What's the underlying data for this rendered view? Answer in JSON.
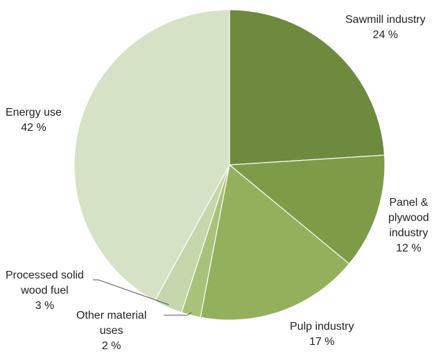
{
  "chart_data": {
    "type": "pie",
    "start_angle": "12 o'clock",
    "direction": "clockwise",
    "slices": [
      {
        "name": "Sawmill industry",
        "label_lines": [
          "Sawmill industry"
        ],
        "value_label": "24 %",
        "value": 24,
        "color": "#6e8a3e"
      },
      {
        "name": "Panel & plywood industry",
        "label_lines": [
          "Panel &",
          "plywood",
          "industry"
        ],
        "value_label": "12 %",
        "value": 12,
        "color": "#7e9c48"
      },
      {
        "name": "Pulp industry",
        "label_lines": [
          "Pulp industry"
        ],
        "value_label": "17 %",
        "value": 17,
        "color": "#93b05c"
      },
      {
        "name": "Other material uses",
        "label_lines": [
          "Other material",
          "uses"
        ],
        "value_label": "2 %",
        "value": 2,
        "color": "#a9c27a"
      },
      {
        "name": "Processed solid wood fuel",
        "label_lines": [
          "Processed solid",
          "wood fuel"
        ],
        "value_label": "3 %",
        "value": 3,
        "color": "#c6d6ad"
      },
      {
        "name": "Energy use",
        "label_lines": [
          "Energy use"
        ],
        "value_label": "42 %",
        "value": 42,
        "color": "#d6e2c6"
      }
    ]
  }
}
